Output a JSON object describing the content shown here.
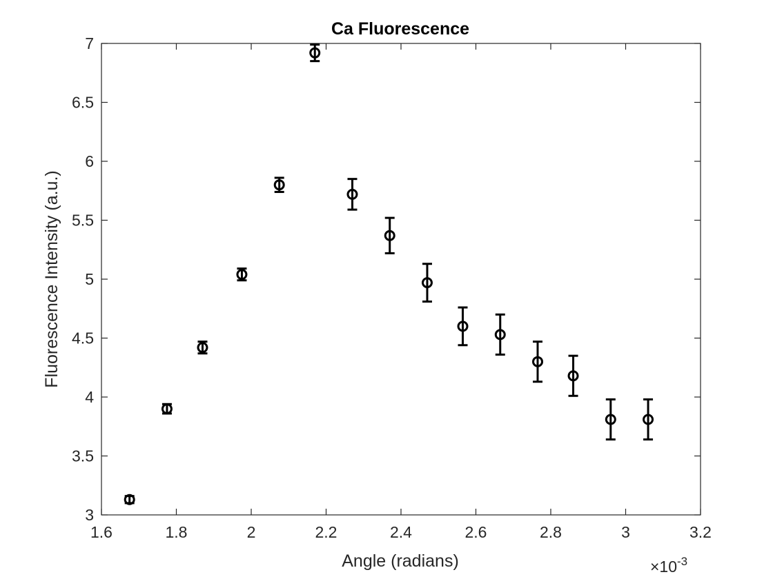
{
  "chart_data": {
    "type": "scatter",
    "title": "Ca Fluorescence",
    "xlabel": "Angle (radians)",
    "ylabel": "Fluorescence Intensity (a.u.)",
    "x_multiplier_label": "×10",
    "x_multiplier_exponent": "-3",
    "xlim": [
      1.6,
      3.2
    ],
    "ylim": [
      3,
      7
    ],
    "x_ticks": [
      1.6,
      1.8,
      2.0,
      2.2,
      2.4,
      2.6,
      2.8,
      3.0,
      3.2
    ],
    "x_tick_labels": [
      "1.6",
      "1.8",
      "2",
      "2.2",
      "2.4",
      "2.6",
      "2.8",
      "3",
      "3.2"
    ],
    "y_ticks": [
      3,
      3.5,
      4,
      4.5,
      5,
      5.5,
      6,
      6.5,
      7
    ],
    "y_tick_labels": [
      "3",
      "3.5",
      "4",
      "4.5",
      "5",
      "5.5",
      "6",
      "6.5",
      "7"
    ],
    "grid": false,
    "marker": "circle",
    "error_bars": true,
    "color": "#000000",
    "points": [
      {
        "x": 1.675,
        "y": 3.13,
        "err": 0.03
      },
      {
        "x": 1.775,
        "y": 3.9,
        "err": 0.04
      },
      {
        "x": 1.87,
        "y": 4.42,
        "err": 0.05
      },
      {
        "x": 1.975,
        "y": 5.04,
        "err": 0.05
      },
      {
        "x": 2.075,
        "y": 5.8,
        "err": 0.06
      },
      {
        "x": 2.17,
        "y": 6.92,
        "err": 0.07
      },
      {
        "x": 2.27,
        "y": 5.72,
        "err": 0.13
      },
      {
        "x": 2.37,
        "y": 5.37,
        "err": 0.15
      },
      {
        "x": 2.47,
        "y": 4.97,
        "err": 0.16
      },
      {
        "x": 2.565,
        "y": 4.6,
        "err": 0.16
      },
      {
        "x": 2.665,
        "y": 4.53,
        "err": 0.17
      },
      {
        "x": 2.765,
        "y": 4.3,
        "err": 0.17
      },
      {
        "x": 2.86,
        "y": 4.18,
        "err": 0.17
      },
      {
        "x": 2.96,
        "y": 3.81,
        "err": 0.17
      },
      {
        "x": 3.06,
        "y": 3.81,
        "err": 0.17
      }
    ]
  }
}
